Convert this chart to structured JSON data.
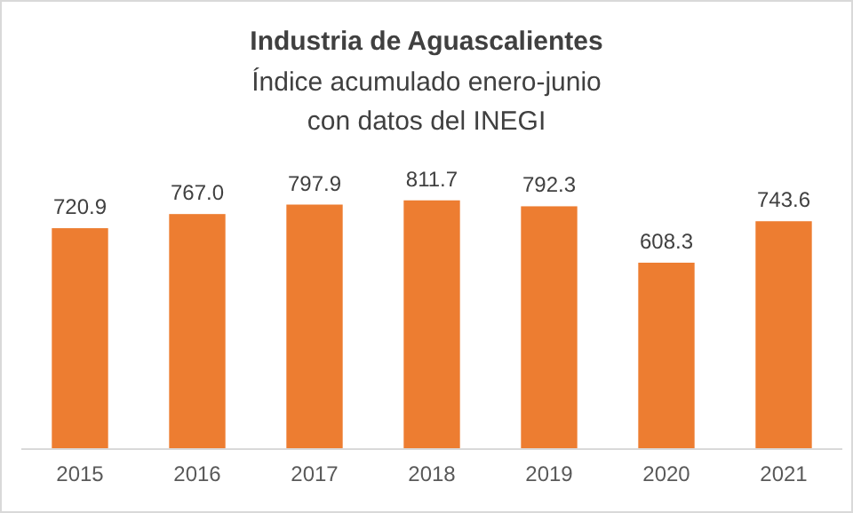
{
  "chart_data": {
    "type": "bar",
    "title": "Industria de Aguascalientes",
    "subtitle": "Índice acumulado enero-junio",
    "annotations": [
      "con datos del INEGI"
    ],
    "categories": [
      "2015",
      "2016",
      "2017",
      "2018",
      "2019",
      "2020",
      "2021"
    ],
    "values": [
      720.9,
      767.0,
      797.9,
      811.7,
      792.3,
      608.3,
      743.6
    ],
    "value_labels": [
      "720.9",
      "767.0",
      "797.9",
      "811.7",
      "792.3",
      "608.3",
      "743.6"
    ],
    "color": "#ed7d31"
  }
}
